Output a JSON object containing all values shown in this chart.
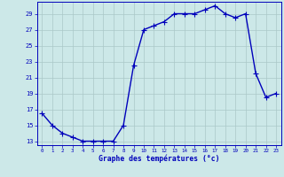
{
  "x": [
    0,
    1,
    2,
    3,
    4,
    5,
    6,
    7,
    8,
    9,
    10,
    11,
    12,
    13,
    14,
    15,
    16,
    17,
    18,
    19,
    20,
    21,
    22,
    23
  ],
  "y": [
    16.5,
    15.0,
    14.0,
    13.5,
    13.0,
    13.0,
    13.0,
    13.0,
    15.0,
    22.5,
    27.0,
    27.5,
    28.0,
    29.0,
    29.0,
    29.0,
    29.5,
    30.0,
    29.0,
    28.5,
    29.0,
    21.5,
    18.5,
    19.0
  ],
  "xlabel": "Graphe des températures (°c)",
  "ylabel_ticks": [
    13,
    15,
    17,
    19,
    21,
    23,
    25,
    27,
    29
  ],
  "xlim": [
    -0.5,
    23.5
  ],
  "ylim": [
    12.5,
    30.5
  ],
  "bg_color": "#cce8e8",
  "line_color": "#0000bb",
  "grid_color": "#aac8c8",
  "tick_color": "#0000bb",
  "label_color": "#0000bb",
  "markersize": 2.5,
  "linewidth": 1.0,
  "xtick_fontsize": 4.2,
  "ytick_fontsize": 5.0,
  "xlabel_fontsize": 5.8
}
